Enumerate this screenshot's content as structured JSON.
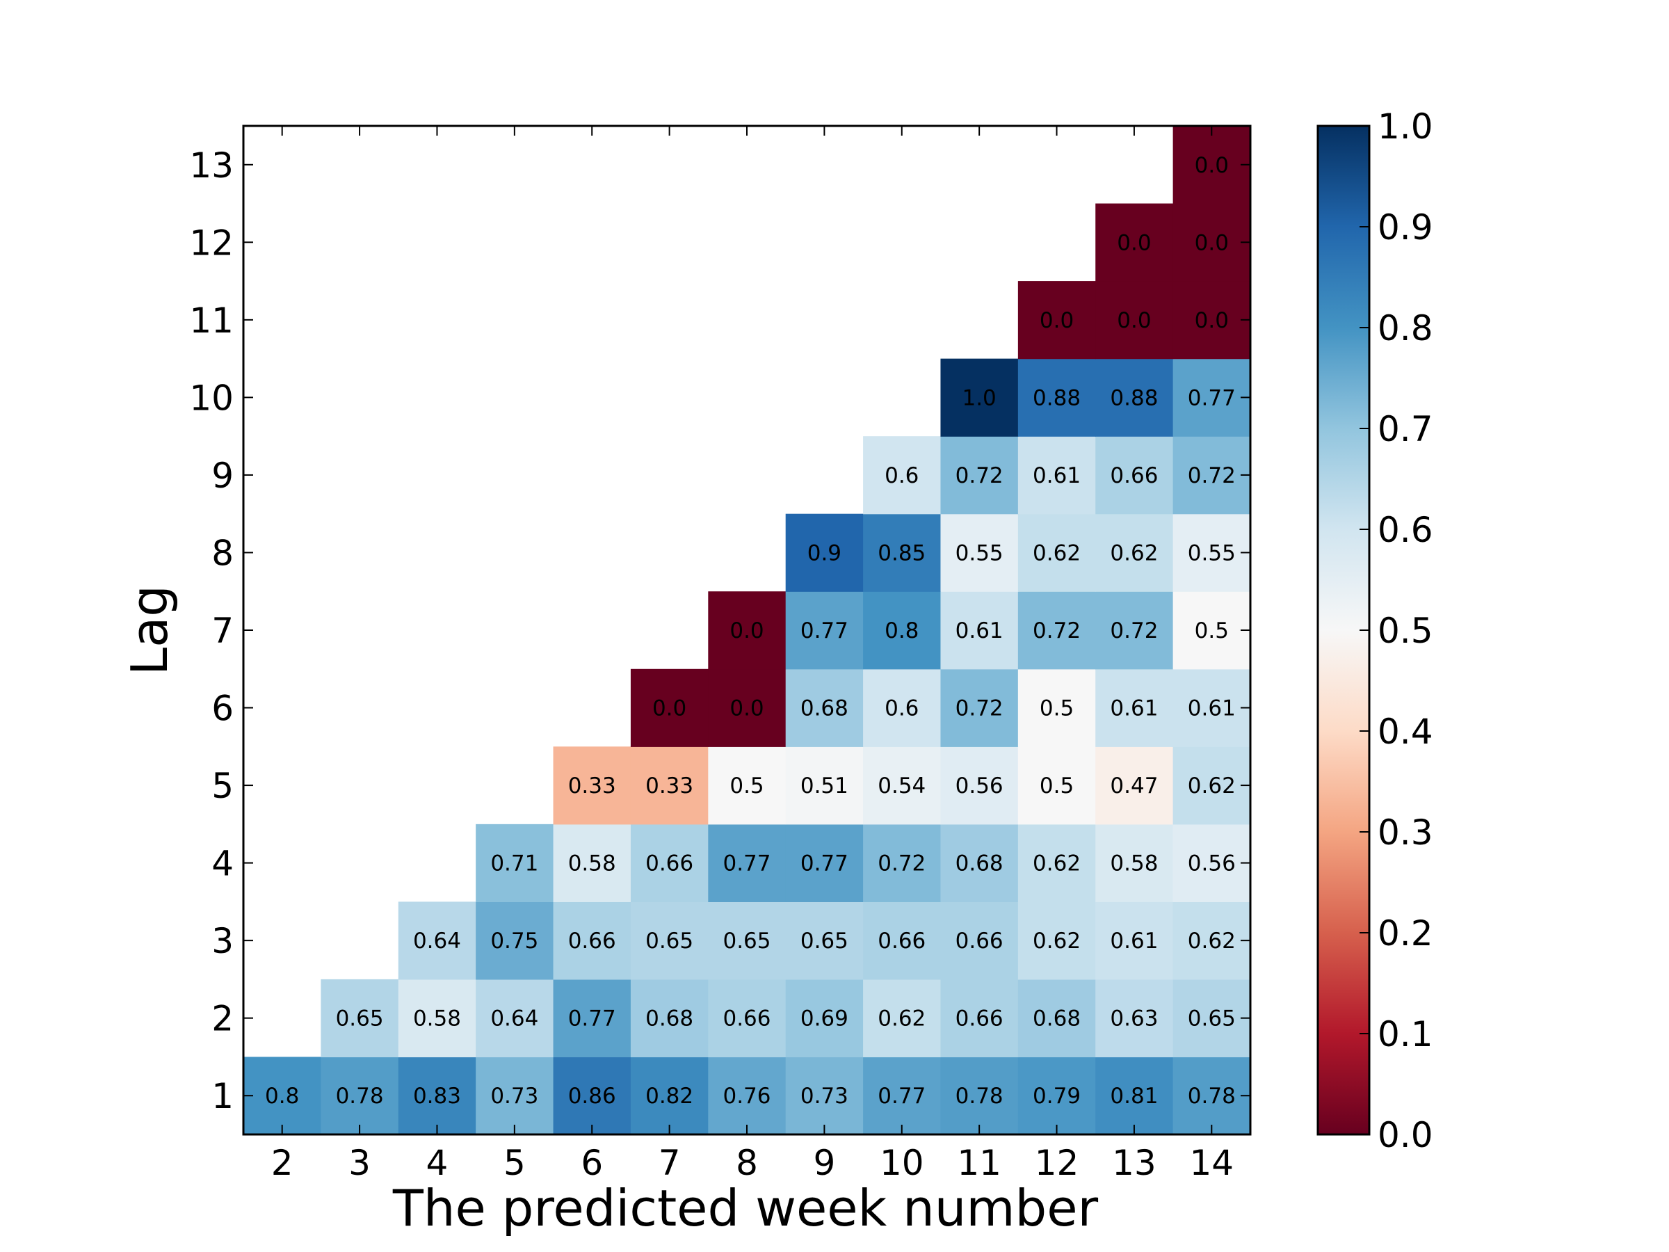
{
  "chart_data": {
    "type": "heatmap",
    "title": "",
    "xlabel": "The predicted week number",
    "ylabel": "Lag",
    "x": [
      2,
      3,
      4,
      5,
      6,
      7,
      8,
      9,
      10,
      11,
      12,
      13,
      14
    ],
    "y": [
      1,
      2,
      3,
      4,
      5,
      6,
      7,
      8,
      9,
      10,
      11,
      12,
      13
    ],
    "x_tick_labels": [
      "2",
      "3",
      "4",
      "5",
      "6",
      "7",
      "8",
      "9",
      "10",
      "11",
      "12",
      "13",
      "14"
    ],
    "y_tick_labels": [
      "1",
      "2",
      "3",
      "4",
      "5",
      "6",
      "7",
      "8",
      "9",
      "10",
      "11",
      "12",
      "13"
    ],
    "rows": [
      {
        "lag": 1,
        "values": [
          0.8,
          0.78,
          0.83,
          0.73,
          0.86,
          0.82,
          0.76,
          0.73,
          0.77,
          0.78,
          0.79,
          0.81,
          0.78
        ],
        "labels": [
          "0.8",
          "0.78",
          "0.83",
          "0.73",
          "0.86",
          "0.82",
          "0.76",
          "0.73",
          "0.77",
          "0.78",
          "0.79",
          "0.81",
          "0.78"
        ]
      },
      {
        "lag": 2,
        "values": [
          null,
          0.65,
          0.58,
          0.64,
          0.77,
          0.68,
          0.66,
          0.69,
          0.62,
          0.66,
          0.68,
          0.63,
          0.65
        ],
        "labels": [
          "",
          "0.65",
          "0.58",
          "0.64",
          "0.77",
          "0.68",
          "0.66",
          "0.69",
          "0.62",
          "0.66",
          "0.68",
          "0.63",
          "0.65"
        ]
      },
      {
        "lag": 3,
        "values": [
          null,
          null,
          0.64,
          0.75,
          0.66,
          0.65,
          0.65,
          0.65,
          0.66,
          0.66,
          0.62,
          0.61,
          0.62
        ],
        "labels": [
          "",
          "",
          "0.64",
          "0.75",
          "0.66",
          "0.65",
          "0.65",
          "0.65",
          "0.66",
          "0.66",
          "0.62",
          "0.61",
          "0.62"
        ]
      },
      {
        "lag": 4,
        "values": [
          null,
          null,
          null,
          0.71,
          0.58,
          0.66,
          0.77,
          0.77,
          0.72,
          0.68,
          0.62,
          0.58,
          0.56
        ],
        "labels": [
          "",
          "",
          "",
          "0.71",
          "0.58",
          "0.66",
          "0.77",
          "0.77",
          "0.72",
          "0.68",
          "0.62",
          "0.58",
          "0.56"
        ]
      },
      {
        "lag": 5,
        "values": [
          null,
          null,
          null,
          null,
          0.33,
          0.33,
          0.5,
          0.51,
          0.54,
          0.56,
          0.5,
          0.47,
          0.62
        ],
        "labels": [
          "",
          "",
          "",
          "",
          "0.33",
          "0.33",
          "0.5",
          "0.51",
          "0.54",
          "0.56",
          "0.5",
          "0.47",
          "0.62"
        ]
      },
      {
        "lag": 6,
        "values": [
          null,
          null,
          null,
          null,
          null,
          0.0,
          0.0,
          0.68,
          0.6,
          0.72,
          0.5,
          0.61,
          0.61
        ],
        "labels": [
          "",
          "",
          "",
          "",
          "",
          "0.0",
          "0.0",
          "0.68",
          "0.6",
          "0.72",
          "0.5",
          "0.61",
          "0.61"
        ]
      },
      {
        "lag": 7,
        "values": [
          null,
          null,
          null,
          null,
          null,
          null,
          0.0,
          0.77,
          0.8,
          0.61,
          0.72,
          0.72,
          0.5
        ],
        "labels": [
          "",
          "",
          "",
          "",
          "",
          "",
          "0.0",
          "0.77",
          "0.8",
          "0.61",
          "0.72",
          "0.72",
          "0.5"
        ]
      },
      {
        "lag": 8,
        "values": [
          null,
          null,
          null,
          null,
          null,
          null,
          null,
          0.9,
          0.85,
          0.55,
          0.62,
          0.62,
          0.55
        ],
        "labels": [
          "",
          "",
          "",
          "",
          "",
          "",
          "",
          "0.9",
          "0.85",
          "0.55",
          "0.62",
          "0.62",
          "0.55"
        ]
      },
      {
        "lag": 9,
        "values": [
          null,
          null,
          null,
          null,
          null,
          null,
          null,
          null,
          0.6,
          0.72,
          0.61,
          0.66,
          0.72
        ],
        "labels": [
          "",
          "",
          "",
          "",
          "",
          "",
          "",
          "",
          "0.6",
          "0.72",
          "0.61",
          "0.66",
          "0.72"
        ]
      },
      {
        "lag": 10,
        "values": [
          null,
          null,
          null,
          null,
          null,
          null,
          null,
          null,
          null,
          1.0,
          0.88,
          0.88,
          0.77
        ],
        "labels": [
          "",
          "",
          "",
          "",
          "",
          "",
          "",
          "",
          "",
          "1.0",
          "0.88",
          "0.88",
          "0.77"
        ]
      },
      {
        "lag": 11,
        "values": [
          null,
          null,
          null,
          null,
          null,
          null,
          null,
          null,
          null,
          null,
          0.0,
          0.0,
          0.0
        ],
        "labels": [
          "",
          "",
          "",
          "",
          "",
          "",
          "",
          "",
          "",
          "",
          "0.0",
          "0.0",
          "0.0"
        ]
      },
      {
        "lag": 12,
        "values": [
          null,
          null,
          null,
          null,
          null,
          null,
          null,
          null,
          null,
          null,
          null,
          0.0,
          0.0
        ],
        "labels": [
          "",
          "",
          "",
          "",
          "",
          "",
          "",
          "",
          "",
          "",
          "",
          "0.0",
          "0.0"
        ]
      },
      {
        "lag": 13,
        "values": [
          null,
          null,
          null,
          null,
          null,
          null,
          null,
          null,
          null,
          null,
          null,
          null,
          0.0
        ],
        "labels": [
          "",
          "",
          "",
          "",
          "",
          "",
          "",
          "",
          "",
          "",
          "",
          "",
          "0.0"
        ]
      }
    ],
    "colorbar": {
      "min": 0.0,
      "max": 1.0,
      "ticks": [
        0.0,
        0.1,
        0.2,
        0.3,
        0.4,
        0.5,
        0.6,
        0.7,
        0.8,
        0.9,
        1.0
      ],
      "tick_labels": [
        "0.0",
        "0.1",
        "0.2",
        "0.3",
        "0.4",
        "0.5",
        "0.6",
        "0.7",
        "0.8",
        "0.9",
        "1.0"
      ],
      "colormap": "RdBu",
      "color_stops": [
        "#67001f",
        "#b2182b",
        "#d6604d",
        "#f4a582",
        "#fddbc7",
        "#f7f7f7",
        "#d1e5f0",
        "#92c5de",
        "#4393c3",
        "#2166ac",
        "#053061"
      ]
    },
    "legend": "colorbar-right",
    "grid": false
  }
}
